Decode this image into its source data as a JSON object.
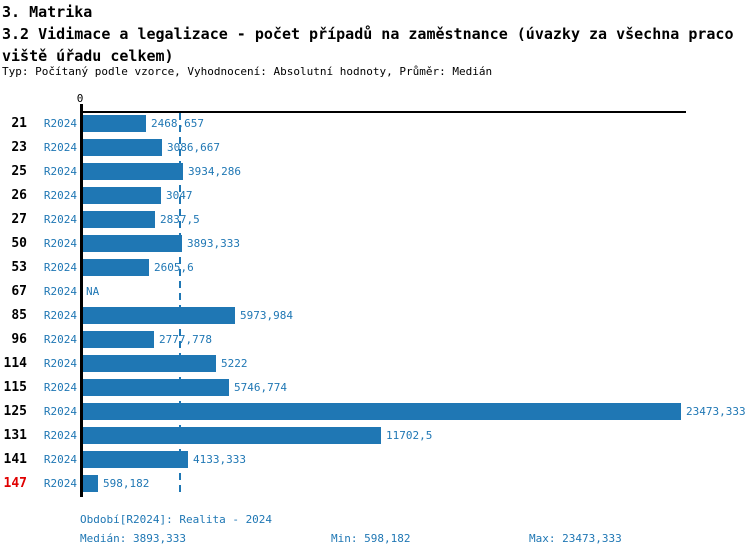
{
  "header": {
    "title_line1": "3. Matrika",
    "title_line2": "3.2 Vidimace a legalizace - počet případů na zaměstnance (úvazky za všechna praco",
    "title_line3": "viště úřadu celkem)",
    "meta": "Typ: Počítaný podle vzorce, Vyhodnocení: Absolutní hodnoty, Průměr: Medián"
  },
  "chart_data": {
    "type": "bar",
    "orientation": "horizontal",
    "axis_zero_label": "0",
    "series_period": "R2024",
    "categories": [
      "21",
      "23",
      "25",
      "26",
      "27",
      "50",
      "53",
      "67",
      "85",
      "96",
      "114",
      "115",
      "125",
      "131",
      "141",
      "147"
    ],
    "values": [
      2468.657,
      3086.667,
      3934.286,
      3047,
      2837.5,
      3893.333,
      2605.6,
      null,
      5973.984,
      2777.778,
      5222,
      5746.774,
      23473.333,
      11702.5,
      4133.333,
      598.182
    ],
    "value_labels": [
      "2468,657",
      "3086,667",
      "3934,286",
      "3047",
      "2837,5",
      "3893,333",
      "2605,6",
      "NA",
      "5973,984",
      "2777,778",
      "5222",
      "5746,774",
      "23473,333",
      "11702,5",
      "4133,333",
      "598,182"
    ],
    "highlighted_categories": [
      "147"
    ],
    "median_value": 3893.333,
    "xmin": 0,
    "xmax": 23473.333,
    "grid": "median-dashed-line",
    "legend": "none",
    "colors": {
      "bar": "#1f77b4",
      "text_blue": "#1f77b4",
      "median_line": "#1f77b4",
      "highlight_red": "#e00000",
      "axis": "#000000"
    }
  },
  "footer": {
    "period_label": "Období[R2024]: Realita - 2024",
    "median_label": "Medián: 3893,333",
    "min_label": "Min: 598,182",
    "max_label": "Max: 23473,333"
  }
}
